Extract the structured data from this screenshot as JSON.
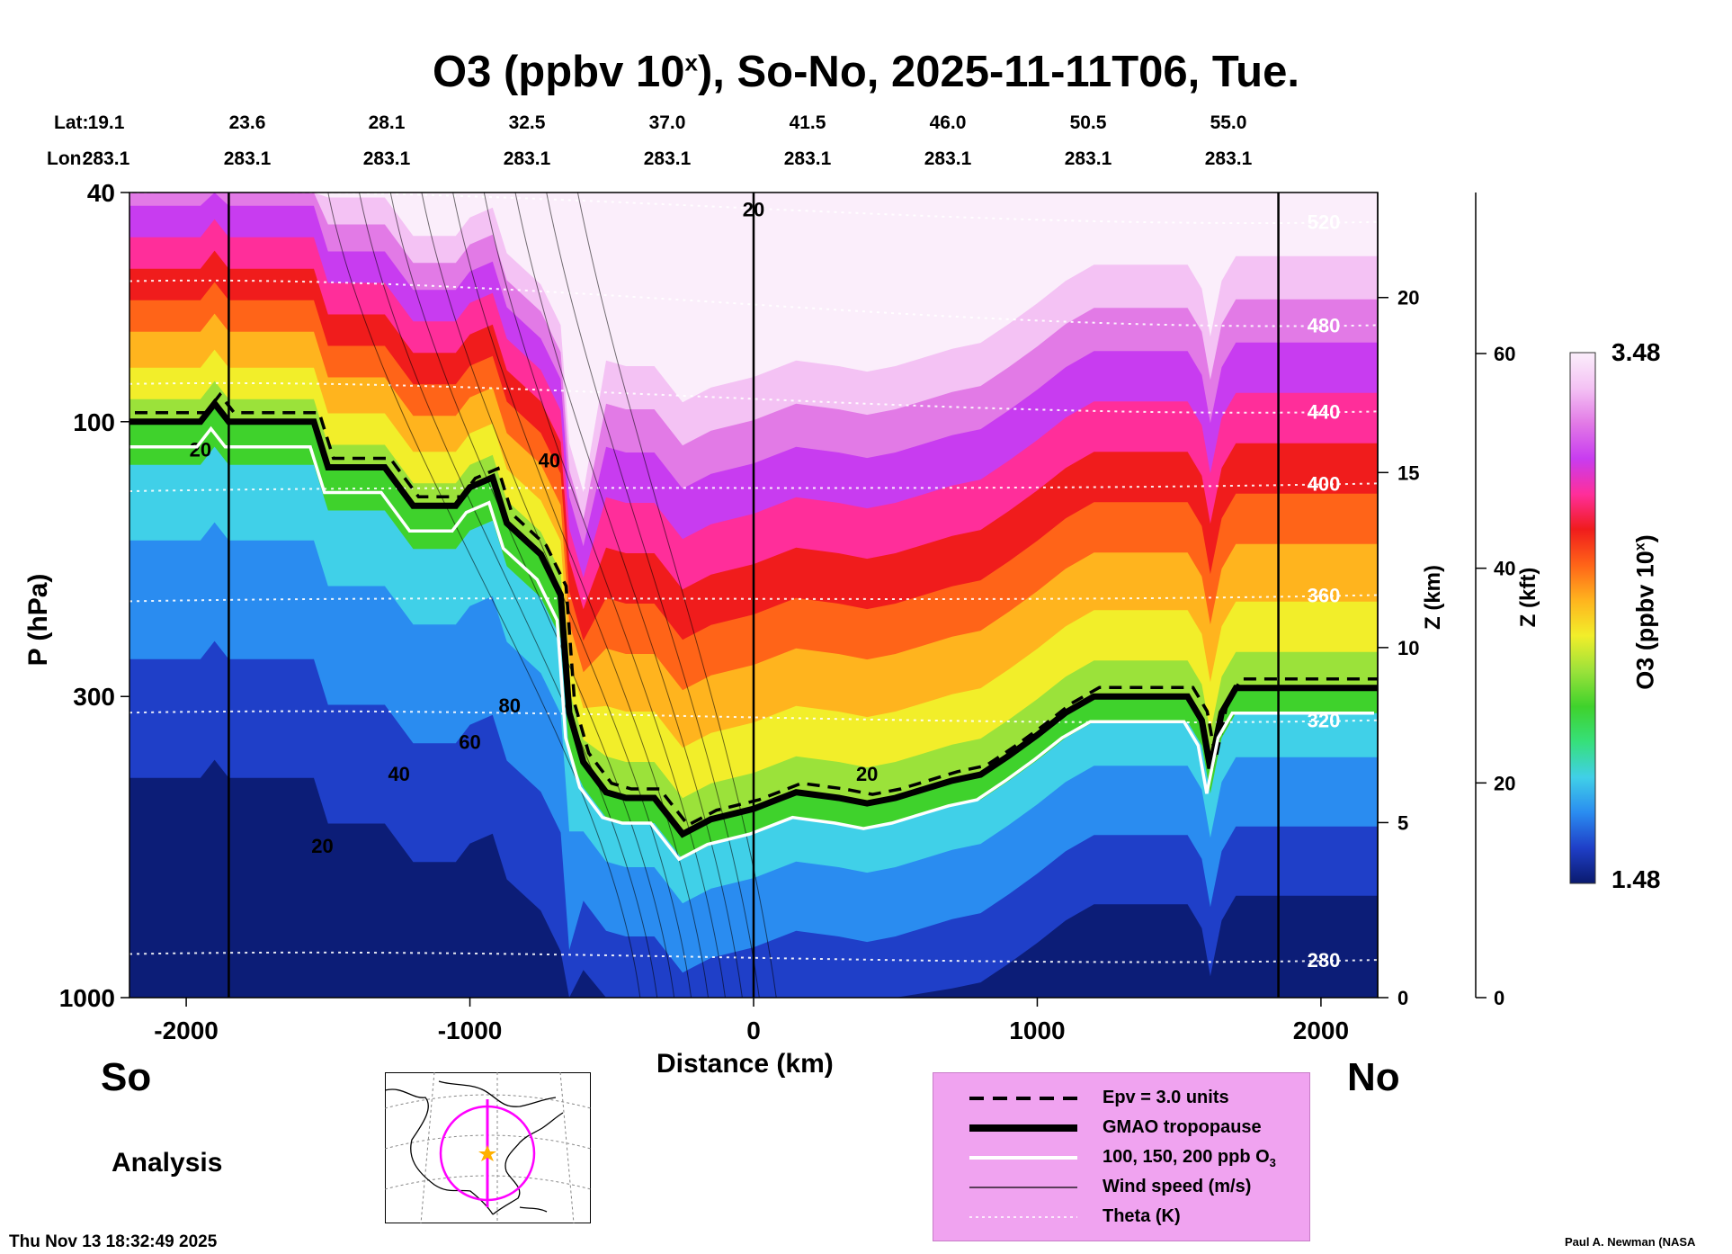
{
  "title": {
    "main": "O3 (ppbv 10",
    "sup": "x",
    "rest": "), So-No, 2025-11-11T06, Tue."
  },
  "header": {
    "lat_label": "Lat:",
    "lon_label": "Lon:",
    "columns": [
      {
        "lat": "19.1",
        "lon": "283.1"
      },
      {
        "lat": "23.6",
        "lon": "283.1"
      },
      {
        "lat": "28.1",
        "lon": "283.1"
      },
      {
        "lat": "32.5",
        "lon": "283.1"
      },
      {
        "lat": "37.0",
        "lon": "283.1"
      },
      {
        "lat": "41.5",
        "lon": "283.1"
      },
      {
        "lat": "46.0",
        "lon": "283.1"
      },
      {
        "lat": "50.5",
        "lon": "283.1"
      },
      {
        "lat": "55.0",
        "lon": "283.1"
      }
    ]
  },
  "labels": {
    "south": "So",
    "north": "No",
    "analysis": "Analysis",
    "timestamp": "Thu Nov 13 18:32:49 2025",
    "credit": "Paul A. Newman (NASA"
  },
  "colors": {
    "o3_scale": [
      "#0a1a6e",
      "#1f3fc8",
      "#2a8cf0",
      "#40d0e8",
      "#36e07a",
      "#3fd22c",
      "#9be23a",
      "#f2ee2a",
      "#ffb41e",
      "#ff6418",
      "#f01c1c",
      "#ff2e9a",
      "#c83cf0",
      "#e27ae6",
      "#f4c2f4",
      "#fbeefb"
    ],
    "legend_bg": "#f0a3f0",
    "map_circle": "#ff00ff",
    "map_star": "#ffb000"
  },
  "chart_data": {
    "type": "heatmap",
    "title": "O3 (ppbv 10x), So-No, 2025-11-11T06, Tue.",
    "xlabel": "Distance (km)",
    "ylabel": "P (hPa)",
    "xlim": [
      -2200,
      2200
    ],
    "ylim": [
      1000,
      40
    ],
    "yscale": "log",
    "x_ticks": [
      -2000,
      -1000,
      0,
      1000,
      2000
    ],
    "y_ticks": [
      40,
      100,
      300,
      1000
    ],
    "z_km_label": "Z (km)",
    "z_km_ticks": [
      0,
      5,
      10,
      15,
      20
    ],
    "z_kft_label": "Z (kft)",
    "z_kft_ticks": [
      0,
      20,
      40,
      60
    ],
    "z_km_max": 23,
    "z_kft_max": 75,
    "vertical_lines_km": [
      -1850,
      0,
      1850
    ],
    "colorbar": {
      "label": "O3 (ppbv 10",
      "label_sup": "x",
      "label_end": ")",
      "min": 1.48,
      "max": 3.48
    },
    "tropopause_hpa": [
      [
        -2200,
        100
      ],
      [
        -1950,
        100
      ],
      [
        -1900,
        93
      ],
      [
        -1850,
        100
      ],
      [
        -1550,
        100
      ],
      [
        -1500,
        120
      ],
      [
        -1300,
        120
      ],
      [
        -1200,
        140
      ],
      [
        -1050,
        140
      ],
      [
        -1000,
        130
      ],
      [
        -920,
        125
      ],
      [
        -870,
        150
      ],
      [
        -750,
        170
      ],
      [
        -680,
        200
      ],
      [
        -650,
        320
      ],
      [
        -600,
        390
      ],
      [
        -520,
        440
      ],
      [
        -450,
        450
      ],
      [
        -350,
        450
      ],
      [
        -250,
        520
      ],
      [
        -150,
        490
      ],
      [
        0,
        470
      ],
      [
        150,
        440
      ],
      [
        300,
        450
      ],
      [
        400,
        460
      ],
      [
        500,
        450
      ],
      [
        700,
        420
      ],
      [
        800,
        410
      ],
      [
        900,
        380
      ],
      [
        1000,
        350
      ],
      [
        1100,
        320
      ],
      [
        1200,
        300
      ],
      [
        1400,
        300
      ],
      [
        1530,
        300
      ],
      [
        1580,
        330
      ],
      [
        1610,
        400
      ],
      [
        1650,
        320
      ],
      [
        1700,
        290
      ],
      [
        1800,
        290
      ],
      [
        2200,
        290
      ]
    ],
    "theta_levels_K": [
      280,
      320,
      360,
      400,
      440,
      480,
      520
    ],
    "theta_hpa_left": [
      840,
      320,
      205,
      132,
      86,
      57,
      40
    ],
    "theta_hpa_right": [
      860,
      330,
      200,
      128,
      96,
      68,
      45
    ],
    "wind_contour_labels_ms": [
      20,
      40,
      80,
      60,
      40,
      20,
      20,
      20
    ],
    "series": [
      {
        "name": "Epv = 3.0 units"
      },
      {
        "name": "GMAO tropopause"
      },
      {
        "name": "100, 150, 200 ppb O",
        "name_sub": "3"
      },
      {
        "name": "Wind speed (m/s)"
      },
      {
        "name": "Theta (K)"
      }
    ]
  }
}
